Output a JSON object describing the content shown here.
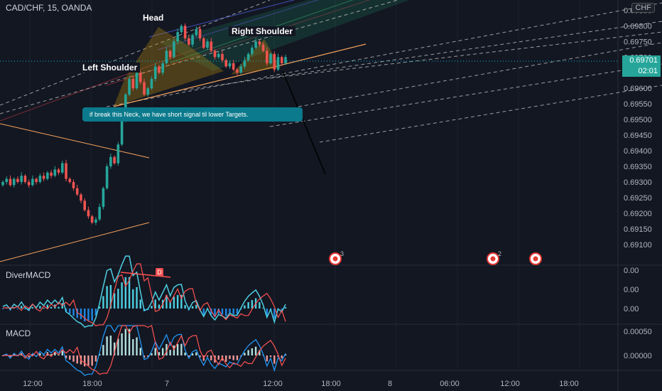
{
  "header": {
    "symbol": "CAD/CHF, 15, OANDA",
    "currency": "CHF"
  },
  "annotations": {
    "head": "Head",
    "left_shoulder": "Left Shoulder",
    "right_shoulder": "Right Shoulder",
    "note": "if break this Neck, we have short signal til lower Targets.",
    "divergence_badge": "D",
    "event_counts": [
      "3",
      "2"
    ]
  },
  "price_tags": {
    "last_price": "0.69701",
    "countdown": "02:01"
  },
  "panes": {
    "divermacd_label": "DiverMACD",
    "macd_label": "MACD"
  },
  "colors": {
    "background": "#131722",
    "up": "#26a69a",
    "down": "#ef5350",
    "neckline": "#f7a35c",
    "macd_line": "#2196f3",
    "signal_line": "#ff5252",
    "price_line": "#00bcd4"
  },
  "chart_data": {
    "type": "candlestick",
    "y_axis_ticks": [
      "0.69850",
      "0.69800",
      "0.69750",
      "0.69700",
      "0.69650",
      "0.69600",
      "0.69550",
      "0.69500",
      "0.69450",
      "0.69400",
      "0.69350",
      "0.69300",
      "0.69250",
      "0.69200",
      "0.69150",
      "0.69100"
    ],
    "ylim": [
      0.6907,
      0.6986
    ],
    "x_axis_ticks": [
      "12:00",
      "18:00",
      "7",
      "12:00",
      "18:00",
      "8",
      "06:00",
      "12:00",
      "18:00"
    ],
    "divermacd_axis_ticks": [
      "0.00",
      "0.00",
      "0.00"
    ],
    "macd_axis_ticks": [
      "0.00050",
      "0.00000"
    ],
    "closes": [
      0.693,
      0.6931,
      0.6929,
      0.6931,
      0.693,
      0.6932,
      0.693,
      0.6929,
      0.6931,
      0.693,
      0.6932,
      0.6931,
      0.6933,
      0.6932,
      0.6934,
      0.6933,
      0.6936,
      0.6931,
      0.693,
      0.6928,
      0.6926,
      0.6924,
      0.6921,
      0.6919,
      0.6917,
      0.6918,
      0.6922,
      0.6928,
      0.6935,
      0.6938,
      0.6936,
      0.6942,
      0.695,
      0.6958,
      0.6963,
      0.696,
      0.6965,
      0.6962,
      0.6958,
      0.696,
      0.6963,
      0.6967,
      0.6965,
      0.6968,
      0.6972,
      0.697,
      0.6975,
      0.6978,
      0.698,
      0.6976,
      0.6974,
      0.6977,
      0.6979,
      0.6976,
      0.6973,
      0.6975,
      0.6972,
      0.697,
      0.6971,
      0.6969,
      0.6967,
      0.6968,
      0.6966,
      0.6965,
      0.6967,
      0.6969,
      0.6971,
      0.6973,
      0.6975,
      0.6974,
      0.6972,
      0.6968,
      0.6971,
      0.6966,
      0.697,
      0.6968,
      0.697
    ]
  }
}
